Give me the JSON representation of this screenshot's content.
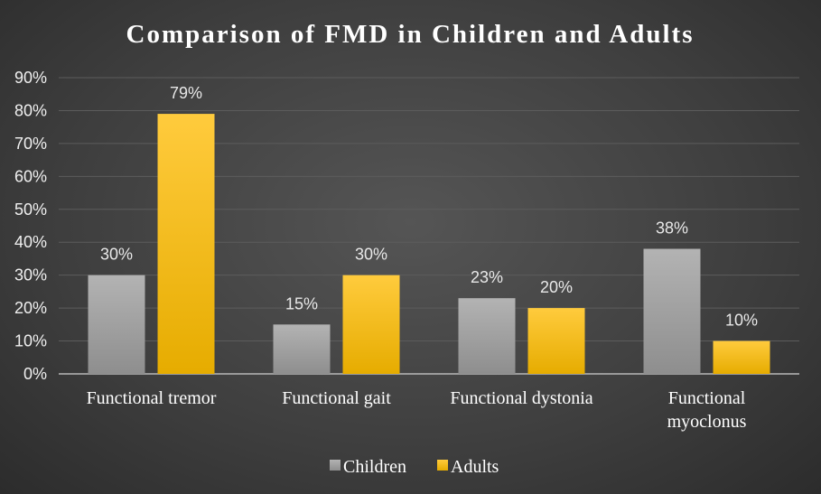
{
  "chart_data": {
    "type": "bar",
    "title": "Comparison of FMD in Children and Adults",
    "xlabel": "",
    "ylabel": "",
    "ylim": [
      0,
      90
    ],
    "yticks": [
      "0%",
      "10%",
      "20%",
      "30%",
      "40%",
      "50%",
      "60%",
      "70%",
      "80%",
      "90%"
    ],
    "categories": [
      [
        "Functional tremor"
      ],
      [
        "Functional gait"
      ],
      [
        "Functional dystonia"
      ],
      [
        "Functional",
        "myoclonus"
      ]
    ],
    "series": [
      {
        "name": "Children",
        "values": [
          30,
          15,
          23,
          38
        ],
        "labels": [
          "30%",
          "15%",
          "23%",
          "38%"
        ],
        "color": "#a9a9a9"
      },
      {
        "name": "Adults",
        "values": [
          79,
          30,
          20,
          10
        ],
        "labels": [
          "79%",
          "30%",
          "20%",
          "10%"
        ],
        "color": "#ffc000"
      }
    ],
    "grid": true,
    "legend_position": "bottom"
  }
}
